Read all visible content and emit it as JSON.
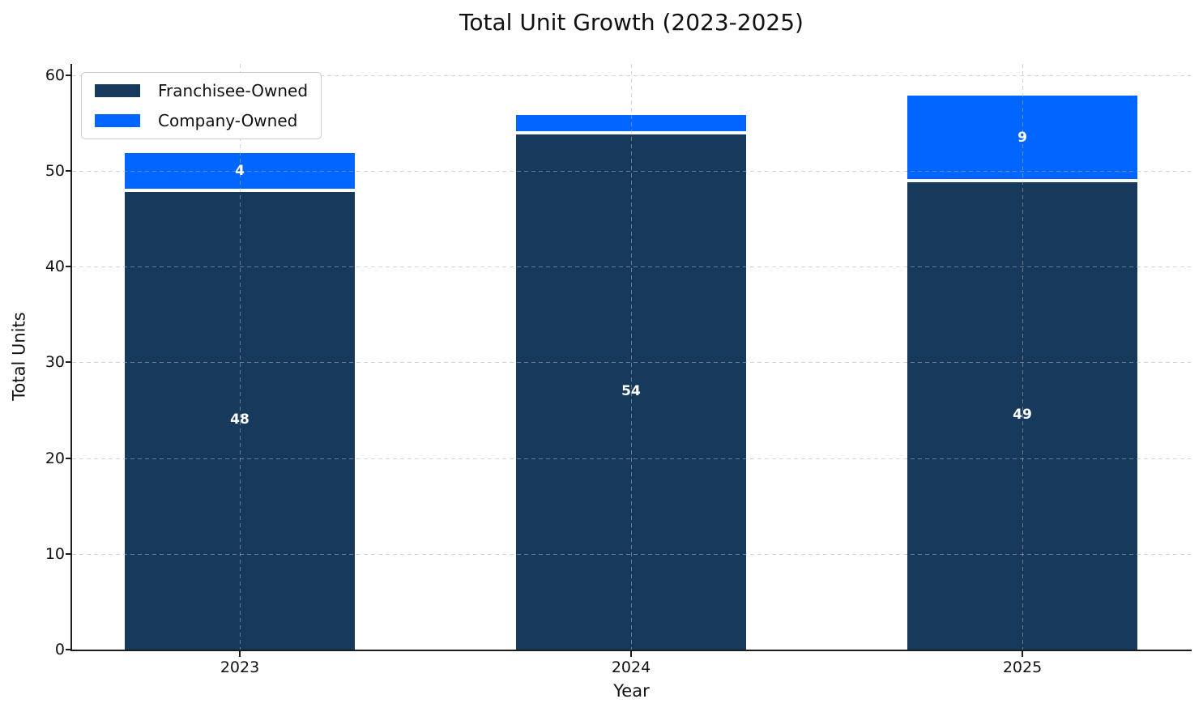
{
  "chart_data": {
    "type": "bar",
    "stacked": true,
    "title": "Total Unit Growth (2023-2025)",
    "xlabel": "Year",
    "ylabel": "Total Units",
    "categories": [
      "2023",
      "2024",
      "2025"
    ],
    "series": [
      {
        "name": "Franchisee-Owned",
        "color": "#17395c",
        "values": [
          48,
          54,
          49
        ],
        "bar_labels": [
          "48",
          "54",
          "49"
        ]
      },
      {
        "name": "Company-Owned",
        "color": "#0066ff",
        "values": [
          4,
          2,
          9
        ],
        "bar_labels": [
          "4",
          null,
          "9"
        ]
      }
    ],
    "totals": [
      52,
      56,
      58
    ],
    "yticks": [
      0,
      10,
      20,
      30,
      40,
      50,
      60
    ],
    "ylim": [
      0,
      60
    ],
    "grid": true,
    "grid_linestyle": "dashed",
    "legend_position": "upper left",
    "bar_label_color": "#ffffff"
  }
}
